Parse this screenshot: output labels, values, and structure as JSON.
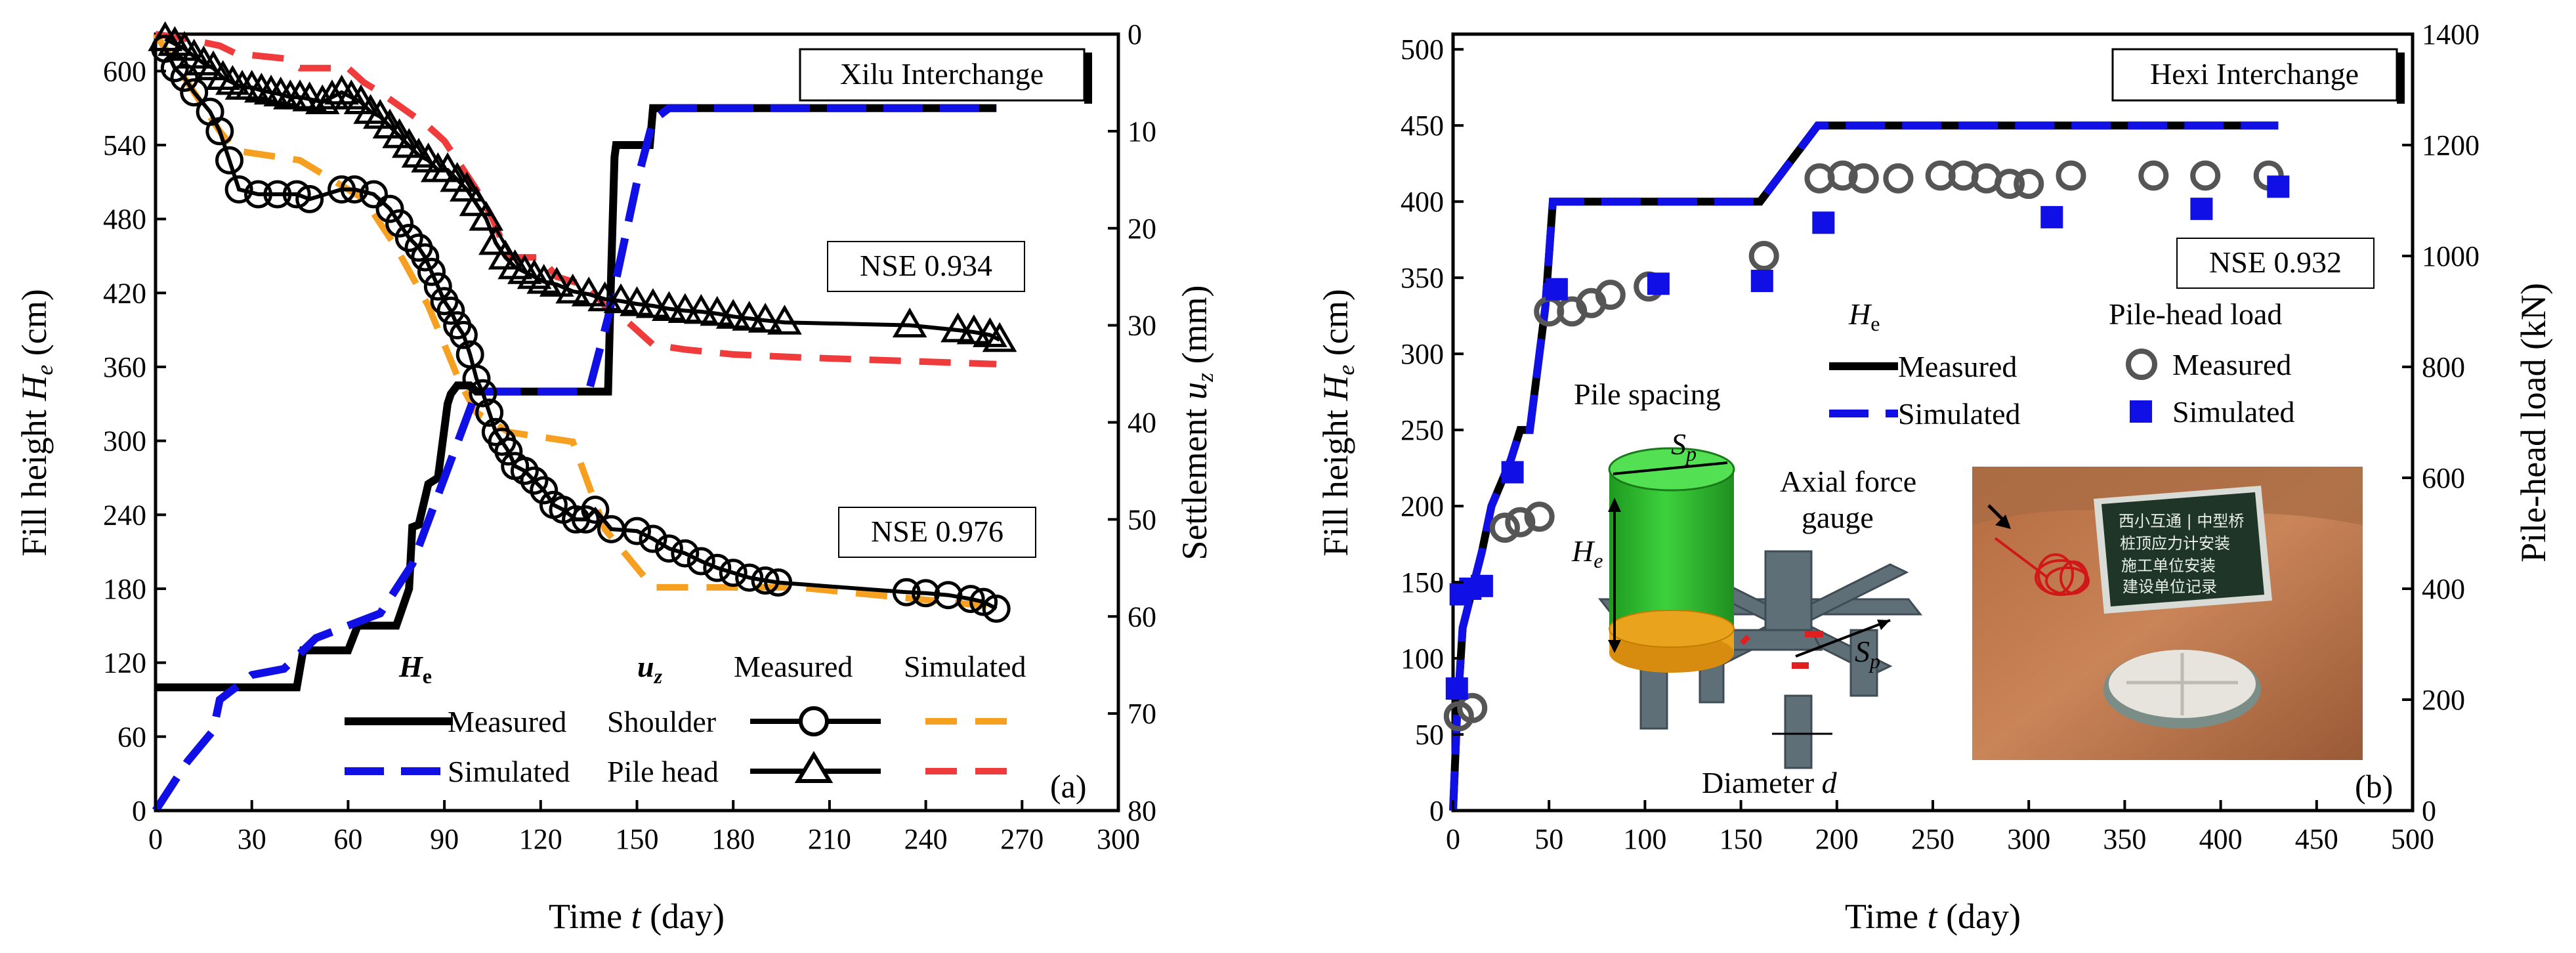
{
  "colors": {
    "measured_line": "#000000",
    "simulated_blue": "#1010e6",
    "shoulder_sim": "#f5a020",
    "pile_head_sim": "#ef3b3b",
    "pile_green": "#2fbf2f",
    "pile_cap_orange": "#e9a31c",
    "beam_gray": "#5f6f78"
  },
  "chart_data": [
    {
      "id": "a",
      "type": "line",
      "panel_label": "(a)",
      "title_box": "Xilu Interchange",
      "xlabel": "Time t (day)",
      "xlabel_main": "Time ",
      "xlabel_var": "t",
      "xlabel_unit": " (day)",
      "ylabel_left_main": "Fill height ",
      "ylabel_left_var": "H",
      "ylabel_left_sub": "e",
      "ylabel_left_unit": " (cm)",
      "ylabel_right_main": "Settlement ",
      "ylabel_right_var": "u",
      "ylabel_right_sub": "z",
      "ylabel_right_unit": " (mm)",
      "xlim": [
        0,
        300
      ],
      "ylim_left": [
        0,
        630
      ],
      "ylim_right": [
        80,
        0
      ],
      "x_ticks": [
        "0",
        "30",
        "60",
        "90",
        "120",
        "150",
        "180",
        "210",
        "240",
        "270",
        "300"
      ],
      "y_left_ticks": [
        "0",
        "60",
        "120",
        "180",
        "240",
        "300",
        "360",
        "420",
        "480",
        "540",
        "600"
      ],
      "y_right_ticks": [
        "0",
        "10",
        "20",
        "30",
        "40",
        "50",
        "60",
        "70",
        "80"
      ],
      "nse_labels": [
        "NSE 0.934",
        "NSE 0.976"
      ],
      "legend": {
        "he_header_var": "H",
        "he_header_sub": "e",
        "uz_header_var": "u",
        "uz_header_sub": "z",
        "measured_col": "Measured",
        "simulated_col": "Simulated",
        "row1": "Measured",
        "row2": "Simulated",
        "row3": "Shoulder",
        "row4": "Pile head"
      },
      "series": [
        {
          "name": "He measured",
          "axis": "left",
          "style": "solid-black",
          "x": [
            0,
            44,
            46,
            60,
            63,
            75,
            79,
            80,
            82,
            85,
            88,
            91,
            92,
            94,
            98,
            100,
            101,
            141,
            142,
            143,
            143.5,
            154,
            155,
            262
          ],
          "y": [
            100,
            100,
            130,
            130,
            150,
            150,
            180,
            230,
            232,
            265,
            270,
            330,
            338,
            345,
            345,
            340,
            340,
            340,
            440,
            530,
            540,
            540,
            570,
            570
          ]
        },
        {
          "name": "He simulated",
          "axis": "left",
          "style": "dash-blue",
          "x": [
            0,
            10,
            18,
            20,
            30,
            40,
            50,
            60,
            70,
            80,
            90,
            100,
            110,
            120,
            135,
            141,
            150,
            155,
            160,
            262
          ],
          "y": [
            0,
            40,
            65,
            90,
            110,
            115,
            140,
            150,
            160,
            200,
            270,
            340,
            340,
            340,
            340,
            400,
            510,
            560,
            570,
            570
          ]
        },
        {
          "name": "Shoulder measured",
          "axis": "right",
          "style": "circle-marker",
          "x": [
            3,
            6,
            9,
            12,
            17,
            20,
            23,
            26,
            32,
            38,
            44,
            48,
            58,
            62,
            68,
            73,
            76,
            79,
            82,
            84,
            86,
            88,
            90,
            92,
            94,
            96,
            98,
            100,
            102,
            104,
            106,
            108,
            110,
            112,
            115,
            118,
            121,
            124,
            127,
            131,
            134,
            137,
            142,
            150,
            155,
            160,
            165,
            170,
            175,
            180,
            185,
            190,
            194,
            234,
            240,
            247,
            254,
            258,
            262
          ],
          "y": [
            1.5,
            3.5,
            4.5,
            6,
            8,
            10,
            13,
            16,
            16.5,
            16.5,
            16.5,
            17,
            16,
            16,
            16.5,
            18,
            19.5,
            21,
            22,
            23,
            24.5,
            26,
            27.5,
            28.5,
            30,
            31,
            33,
            35.5,
            37,
            39,
            41,
            42,
            43,
            44.5,
            45,
            46,
            47,
            48.5,
            49,
            50,
            50,
            49,
            51,
            51.2,
            52,
            53,
            53.5,
            54.3,
            55,
            55.5,
            56,
            56.3,
            56.5,
            57.5,
            57.6,
            57.8,
            58.2,
            58.5,
            59.2
          ]
        },
        {
          "name": "Shoulder simulated",
          "axis": "right",
          "style": "dash-orange",
          "x": [
            0,
            10,
            20,
            25,
            45,
            55,
            65,
            75,
            85,
            90,
            95,
            100,
            110,
            130,
            140,
            155,
            200,
            262
          ],
          "y": [
            0,
            5,
            10,
            12,
            13,
            15,
            17,
            22,
            28,
            32,
            36,
            39,
            41,
            42,
            51,
            57,
            57,
            59
          ]
        },
        {
          "name": "Pile head measured",
          "axis": "right",
          "style": "triangle-marker",
          "x": [
            3,
            6,
            9,
            12,
            15,
            18,
            21,
            24,
            27,
            30,
            33,
            36,
            39,
            42,
            45,
            48,
            52,
            55,
            58,
            61,
            64,
            67,
            70,
            73,
            76,
            79,
            82,
            85,
            88,
            91,
            94,
            97,
            100,
            103,
            106,
            109,
            112,
            115,
            118,
            121,
            125,
            130,
            135,
            140,
            145,
            150,
            155,
            160,
            165,
            170,
            175,
            180,
            185,
            190,
            196,
            235,
            250,
            255,
            260,
            263
          ],
          "y": [
            0.5,
            1,
            1.5,
            2.3,
            3,
            3.5,
            4.5,
            5,
            5.5,
            5.5,
            5.8,
            6,
            6.2,
            6.5,
            6.5,
            6.7,
            7,
            6.5,
            6,
            6.5,
            7,
            8,
            8.5,
            9.5,
            10.5,
            11.5,
            12.5,
            13,
            14,
            14,
            15,
            16,
            17.5,
            19,
            21.5,
            23,
            24,
            24.5,
            25,
            25.5,
            25.8,
            26.5,
            26.8,
            27.3,
            27.5,
            27.8,
            28,
            28.3,
            28.5,
            28.6,
            28.8,
            29.1,
            29.3,
            29.5,
            29.7,
            30,
            30.5,
            30.7,
            31,
            31.5
          ]
        },
        {
          "name": "Pile head simulated",
          "axis": "right",
          "style": "dash-red",
          "x": [
            0,
            10,
            20,
            25,
            40,
            45,
            60,
            65,
            70,
            85,
            90,
            95,
            100,
            105,
            110,
            120,
            125,
            135,
            140,
            145,
            155,
            165,
            180,
            200,
            262
          ],
          "y": [
            0,
            0.5,
            1.2,
            2,
            2.5,
            3.5,
            3.5,
            5,
            6,
            9.5,
            11,
            13.5,
            16,
            19,
            23,
            23,
            25,
            26,
            28,
            29,
            32,
            32.5,
            33,
            33.3,
            34
          ]
        }
      ]
    },
    {
      "id": "b",
      "type": "line",
      "panel_label": "(b)",
      "title_box": "Hexi Interchange",
      "xlabel": "Time t (day)",
      "xlabel_main": "Time ",
      "xlabel_var": "t",
      "xlabel_unit": " (day)",
      "ylabel_left_main": "Fill height ",
      "ylabel_left_var": "H",
      "ylabel_left_sub": "e",
      "ylabel_left_unit": " (cm)",
      "ylabel_right": "Pile-head load (kN)",
      "xlim": [
        0,
        500
      ],
      "ylim_left": [
        0,
        510
      ],
      "ylim_right": [
        0,
        1400
      ],
      "x_ticks": [
        "0",
        "50",
        "100",
        "150",
        "200",
        "250",
        "300",
        "350",
        "400",
        "450",
        "500"
      ],
      "y_left_ticks": [
        "0",
        "50",
        "100",
        "150",
        "200",
        "250",
        "300",
        "350",
        "400",
        "450",
        "500"
      ],
      "y_right_ticks": [
        "0",
        "200",
        "400",
        "600",
        "800",
        "1000",
        "1200",
        "1400"
      ],
      "nse_label": "NSE 0.932",
      "legend": {
        "he_header_var": "H",
        "he_header_sub": "e",
        "load_header": "Pile-head load",
        "he_measured": "Measured",
        "he_simulated": "Simulated",
        "load_measured": "Measured",
        "load_simulated": "Simulated"
      },
      "inset": {
        "pile_spacing": "Pile spacing",
        "sp_var": "S",
        "sp_sub": "p",
        "he_var": "H",
        "he_sub": "e",
        "axial_line1": "Axial force",
        "axial_line2": "gauge",
        "diameter_text": "Diameter ",
        "diameter_var": "d",
        "board_line1": "西小互通 | 中型桥",
        "board_line2": "桩顶应力计安装",
        "board_line3": "施工单位安装",
        "board_line4": "建设单位记录"
      },
      "series": [
        {
          "name": "He measured",
          "axis": "left",
          "style": "solid-black",
          "x": [
            0,
            2,
            5,
            10,
            15,
            20,
            25,
            30,
            35,
            40,
            48,
            52,
            55,
            100,
            160,
            190,
            430
          ],
          "y": [
            0,
            60,
            120,
            145,
            170,
            200,
            215,
            230,
            250,
            250,
            330,
            400,
            400,
            400,
            400,
            450,
            450
          ]
        },
        {
          "name": "He simulated",
          "axis": "left",
          "style": "dash-blue",
          "x": [
            0,
            2,
            5,
            10,
            15,
            20,
            25,
            30,
            35,
            40,
            48,
            52,
            55,
            100,
            160,
            190,
            430
          ],
          "y": [
            0,
            60,
            120,
            145,
            170,
            200,
            215,
            230,
            250,
            250,
            330,
            400,
            400,
            400,
            400,
            450,
            450
          ]
        },
        {
          "name": "Load measured",
          "axis": "right",
          "style": "open-circle",
          "x": [
            3,
            10,
            27,
            35,
            45,
            50,
            62,
            72,
            82,
            102,
            162,
            191,
            203,
            214,
            232,
            254,
            266,
            278,
            290,
            300,
            322,
            365,
            392,
            425
          ],
          "y": [
            170,
            185,
            510,
            520,
            530,
            900,
            900,
            915,
            930,
            945,
            1000,
            1140,
            1145,
            1140,
            1140,
            1145,
            1145,
            1140,
            1130,
            1130,
            1145,
            1145,
            1145,
            1145
          ]
        },
        {
          "name": "Load simulated",
          "axis": "right",
          "style": "blue-square",
          "x": [
            2,
            4,
            9,
            15,
            31,
            54,
            107,
            161,
            193,
            312,
            390,
            430
          ],
          "y": [
            220,
            390,
            400,
            405,
            610,
            940,
            950,
            955,
            1060,
            1070,
            1085,
            1125
          ]
        }
      ]
    }
  ]
}
